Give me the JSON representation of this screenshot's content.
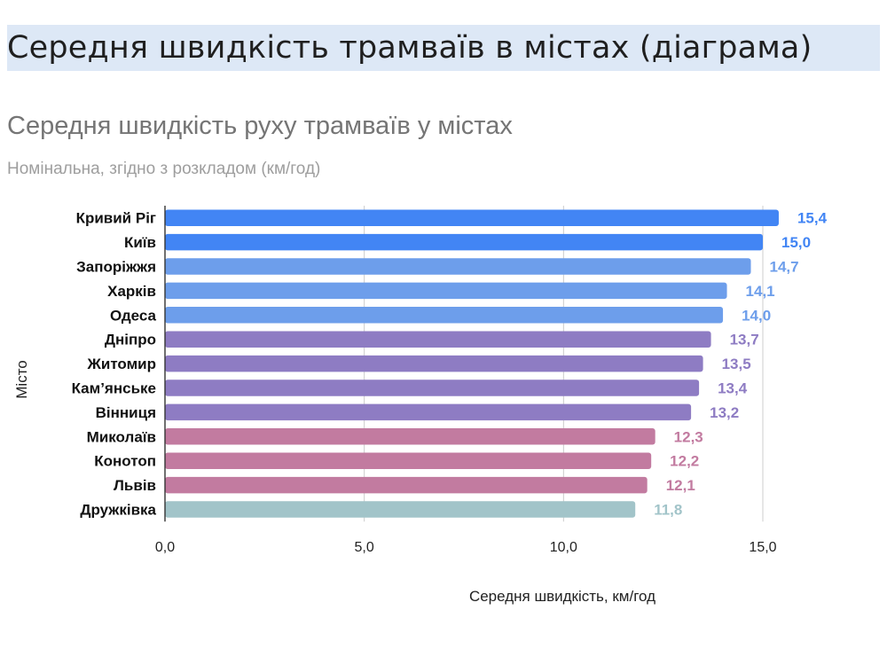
{
  "page": {
    "heading": "Середня швидкість трамваїв в містах (діаграма)"
  },
  "chart_data": {
    "type": "bar",
    "orientation": "horizontal",
    "title": "Середня швидкість руху трамваїв у містах",
    "subtitle": "Номінальна, згідно з розкладом (км/год)",
    "xlabel": "Середня швидкість, км/год",
    "ylabel": "Місто",
    "xlim": [
      0,
      15.0
    ],
    "x_ticks": [
      "0,0",
      "5,0",
      "10,0",
      "15,0"
    ],
    "grid": true,
    "categories": [
      "Кривий Ріг",
      "Київ",
      "Запоріжжя",
      "Харків",
      "Одеса",
      "Дніпро",
      "Житомир",
      "Кам’янське",
      "Вінниця",
      "Миколаїв",
      "Конотоп",
      "Львів",
      "Дружківка"
    ],
    "values": [
      15.4,
      15.0,
      14.7,
      14.1,
      14.0,
      13.7,
      13.5,
      13.4,
      13.2,
      12.3,
      12.2,
      12.1,
      11.8
    ],
    "value_labels": [
      "15,4",
      "15,0",
      "14,7",
      "14,1",
      "14,0",
      "13,7",
      "13,5",
      "13,4",
      "13,2",
      "12,3",
      "12,2",
      "12,1",
      "11,8"
    ],
    "bar_colors": [
      "#4285f4",
      "#4285f4",
      "#6d9eeb",
      "#6d9eeb",
      "#6d9eeb",
      "#8e7cc3",
      "#8e7cc3",
      "#8e7cc3",
      "#8e7cc3",
      "#c27ba0",
      "#c27ba0",
      "#c27ba0",
      "#a2c4c9"
    ],
    "label_colors": [
      "#4285f4",
      "#4285f4",
      "#6d9eeb",
      "#6d9eeb",
      "#6d9eeb",
      "#8e7cc3",
      "#8e7cc3",
      "#8e7cc3",
      "#8e7cc3",
      "#c27ba0",
      "#c27ba0",
      "#c27ba0",
      "#a2c4c9"
    ]
  }
}
